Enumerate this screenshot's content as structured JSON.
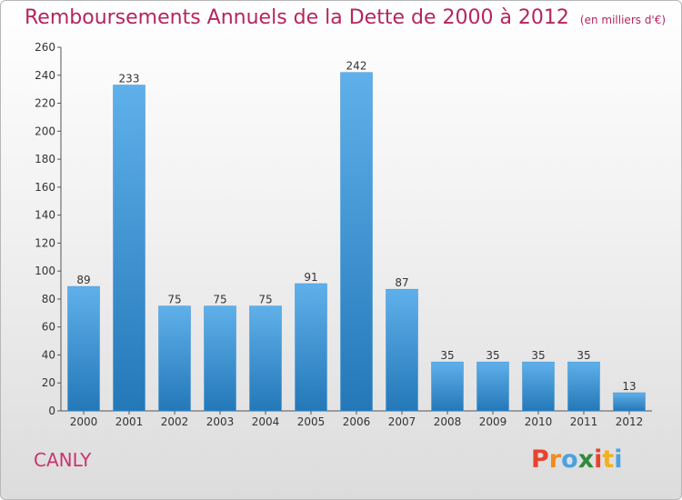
{
  "title": "Remboursements Annuels de la Dette de 2000 à 2012",
  "unit_note": "(en milliers d'€)",
  "town": "CANLY",
  "logo_text": "Proxiti",
  "logo_colors": [
    "#e8422f",
    "#f28a1d",
    "#4aa3df",
    "#2e8b3a",
    "#e8422f",
    "#f2b01d",
    "#4aa3df"
  ],
  "colors": {
    "title": "#b5255f",
    "bar_top": "#5fb0ea",
    "bar_bottom": "#2478b8",
    "axis": "#555555"
  },
  "chart_data": {
    "type": "bar",
    "title": "Remboursements Annuels de la Dette de 2000 à 2012",
    "subtitle": "(en milliers d'€)",
    "categories": [
      "2000",
      "2001",
      "2002",
      "2003",
      "2004",
      "2005",
      "2006",
      "2007",
      "2008",
      "2009",
      "2010",
      "2011",
      "2012"
    ],
    "values": [
      89,
      233,
      75,
      75,
      75,
      91,
      242,
      87,
      35,
      35,
      35,
      35,
      13
    ],
    "ylim": [
      0,
      260
    ],
    "yticks": [
      0,
      20,
      40,
      60,
      80,
      100,
      120,
      140,
      160,
      180,
      200,
      220,
      240,
      260
    ],
    "grid": false,
    "data_labels": true
  }
}
